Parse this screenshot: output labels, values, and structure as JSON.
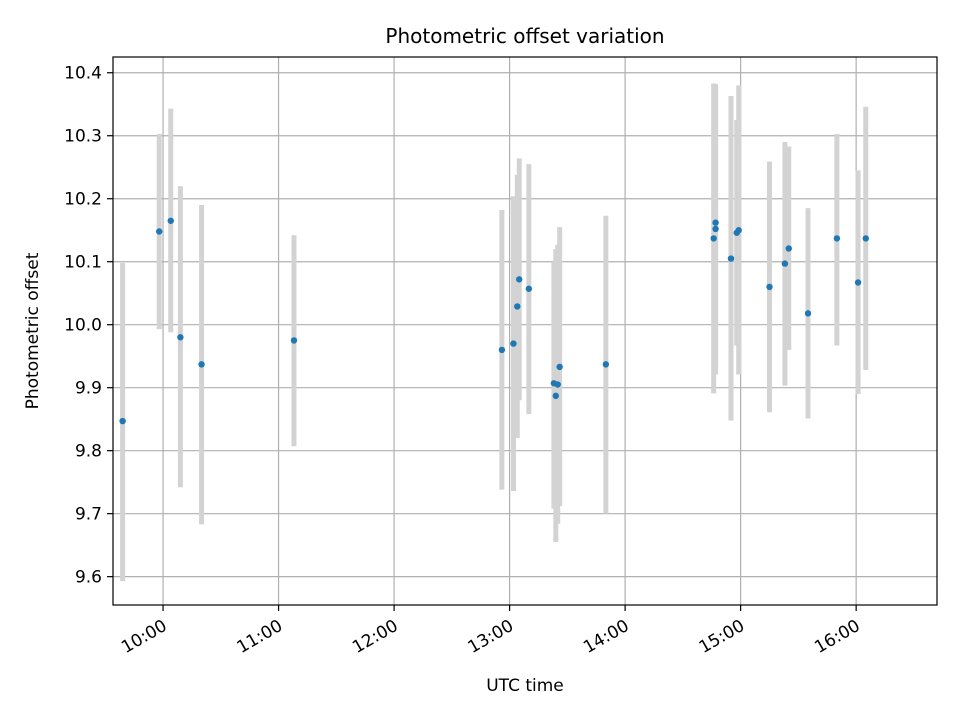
{
  "chart_data": {
    "type": "scatter",
    "title": "Photometric offset variation",
    "xlabel": "UTC time",
    "ylabel": "Photometric offset",
    "x_axis": {
      "kind": "time",
      "xlim": [
        "09:34",
        "16:42"
      ],
      "ticks": [
        "10:00",
        "11:00",
        "12:00",
        "13:00",
        "14:00",
        "15:00",
        "16:00"
      ],
      "tick_label_rotation": "30"
    },
    "ylim": [
      9.555,
      10.425
    ],
    "y_ticks": [
      "9.6",
      "9.7",
      "9.8",
      "9.9",
      "10.0",
      "10.1",
      "10.2",
      "10.3",
      "10.4"
    ],
    "grid": true,
    "legend": "none",
    "colors": {
      "marker": "#1f77b4",
      "error_bar": "#d3d3d3",
      "grid": "#b0b0b0"
    },
    "points": [
      {
        "time": "09:39",
        "y": 9.847,
        "err_low": 9.593,
        "err_high": 10.098
      },
      {
        "time": "09:58",
        "y": 10.148,
        "err_low": 9.993,
        "err_high": 10.303
      },
      {
        "time": "10:04",
        "y": 10.165,
        "err_low": 9.988,
        "err_high": 10.343
      },
      {
        "time": "10:09",
        "y": 9.98,
        "err_low": 9.742,
        "err_high": 10.22
      },
      {
        "time": "10:20",
        "y": 9.937,
        "err_low": 9.683,
        "err_high": 10.19
      },
      {
        "time": "11:08",
        "y": 9.975,
        "err_low": 9.807,
        "err_high": 10.142
      },
      {
        "time": "12:56",
        "y": 9.96,
        "err_low": 9.738,
        "err_high": 10.182
      },
      {
        "time": "13:02",
        "y": 9.97,
        "err_low": 9.736,
        "err_high": 10.204
      },
      {
        "time": "13:04",
        "y": 10.029,
        "err_low": 9.82,
        "err_high": 10.238
      },
      {
        "time": "13:05",
        "y": 10.072,
        "err_low": 9.88,
        "err_high": 10.264
      },
      {
        "time": "13:10",
        "y": 10.057,
        "err_low": 9.858,
        "err_high": 10.255
      },
      {
        "time": "13:23",
        "y": 9.907,
        "err_low": 9.708,
        "err_high": 10.1
      },
      {
        "time": "13:24",
        "y": 9.887,
        "err_low": 9.655,
        "err_high": 10.12
      },
      {
        "time": "13:25",
        "y": 9.905,
        "err_low": 9.684,
        "err_high": 10.127
      },
      {
        "time": "13:26",
        "y": 9.933,
        "err_low": 9.712,
        "err_high": 10.155
      },
      {
        "time": "13:50",
        "y": 9.937,
        "err_low": 9.7,
        "err_high": 10.173
      },
      {
        "time": "14:46",
        "y": 10.137,
        "err_low": 9.891,
        "err_high": 10.383
      },
      {
        "time": "14:47",
        "y": 10.152,
        "err_low": 9.921,
        "err_high": 10.382
      },
      {
        "time": "14:47",
        "y": 10.162,
        "err_low": 9.943,
        "err_high": 10.381
      },
      {
        "time": "14:55",
        "y": 10.105,
        "err_low": 9.848,
        "err_high": 10.363
      },
      {
        "time": "14:58",
        "y": 10.146,
        "err_low": 9.967,
        "err_high": 10.325
      },
      {
        "time": "14:59",
        "y": 10.15,
        "err_low": 9.921,
        "err_high": 10.38
      },
      {
        "time": "15:15",
        "y": 10.06,
        "err_low": 9.861,
        "err_high": 10.259
      },
      {
        "time": "15:23",
        "y": 10.097,
        "err_low": 9.903,
        "err_high": 10.29
      },
      {
        "time": "15:25",
        "y": 10.121,
        "err_low": 9.96,
        "err_high": 10.283
      },
      {
        "time": "15:35",
        "y": 10.018,
        "err_low": 9.851,
        "err_high": 10.185
      },
      {
        "time": "15:50",
        "y": 10.137,
        "err_low": 9.967,
        "err_high": 10.303
      },
      {
        "time": "16:01",
        "y": 10.067,
        "err_low": 9.89,
        "err_high": 10.245
      },
      {
        "time": "16:05",
        "y": 10.137,
        "err_low": 9.928,
        "err_high": 10.346
      }
    ]
  }
}
